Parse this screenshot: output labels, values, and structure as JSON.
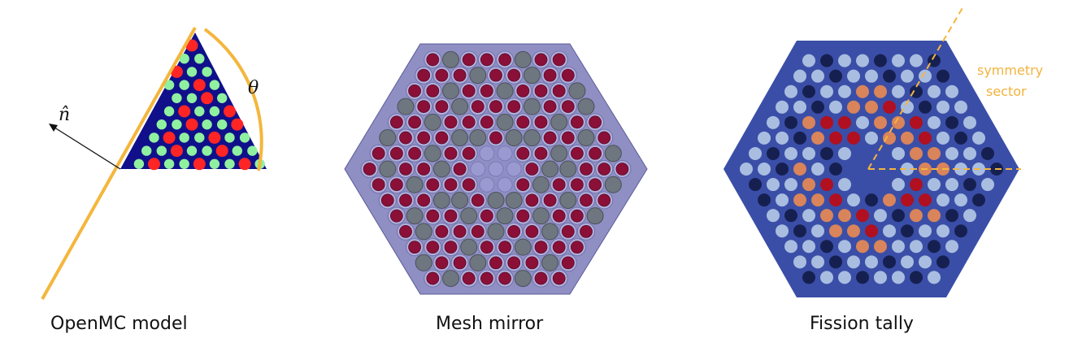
{
  "captions": {
    "openmc": "OpenMC model",
    "mesh": "Mesh mirror",
    "fission": "Fission tally"
  },
  "labels": {
    "theta": "θ",
    "normal": "n̂",
    "symmetry_line1": "symmetry",
    "symmetry_line2": "sector"
  },
  "colors": {
    "background": "#ffffff",
    "plane": "#f4b63c",
    "triangle_fill": "#10108a",
    "fuel_red": "#ff2525",
    "fuel_green": "#8ff0a0",
    "mesh_hex": "#8f8fc4",
    "mesh_pin_red": "#8a1038",
    "mesh_pin_grey": "#6e7680",
    "tally_hex": "#3a4ea8",
    "tally_high": "#b01020",
    "tally_mid": "#d9845a",
    "tally_low": "#a9bde0",
    "tally_dark": "#162050",
    "symmetry_text": "#f2b33d"
  }
}
